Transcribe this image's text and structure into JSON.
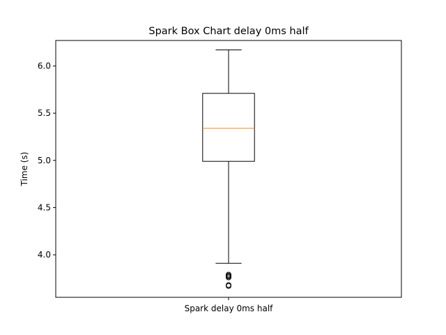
{
  "chart_data": {
    "type": "box",
    "title": "Spark Box Chart delay 0ms half",
    "xlabel": "",
    "ylabel": "Time (s)",
    "categories": [
      "Spark delay 0ms half"
    ],
    "ylim": [
      3.55,
      6.27
    ],
    "yticks": [
      "4.0",
      "4.5",
      "5.0",
      "5.5",
      "6.0"
    ],
    "grid": false,
    "series": [
      {
        "whisker_low": 3.91,
        "q1": 4.99,
        "median": 5.34,
        "q3": 5.71,
        "whisker_high": 6.17,
        "outliers": [
          3.67,
          3.68,
          3.76,
          3.77,
          3.78,
          3.79
        ]
      }
    ],
    "colors": {
      "box": "#000000",
      "median": "#ff7f0e",
      "outlier": "#000000"
    }
  }
}
